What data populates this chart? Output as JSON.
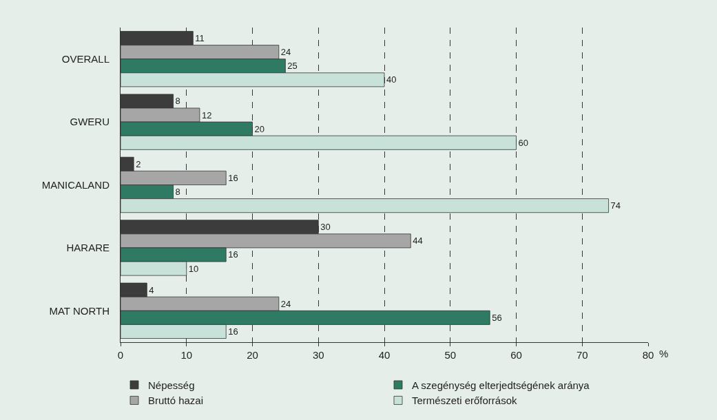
{
  "chart_data": {
    "type": "bar",
    "orientation": "horizontal",
    "xlabel": "%",
    "categories": [
      "OVERALL",
      "GWERU",
      "MANICALAND",
      "HARARE",
      "MAT NORTH"
    ],
    "series": [
      {
        "name": "Népesség",
        "color": "#3c3c3c",
        "values": [
          11,
          8,
          2,
          30,
          4
        ]
      },
      {
        "name": "Bruttó hazai",
        "color": "#a6a6a6",
        "values": [
          24,
          12,
          16,
          44,
          24
        ]
      },
      {
        "name": "A szegénység elterjedtségének aránya",
        "color": "#2e7a62",
        "values": [
          25,
          20,
          8,
          16,
          56
        ]
      },
      {
        "name": "Természeti erőforrások",
        "color": "#c9e2d9",
        "values": [
          40,
          60,
          74,
          10,
          16
        ]
      }
    ],
    "xlim": [
      0,
      80
    ],
    "xticks": [
      0,
      10,
      20,
      30,
      40,
      50,
      60,
      70,
      80
    ],
    "grid": "x",
    "legend": "bottom",
    "data_labels": true
  }
}
